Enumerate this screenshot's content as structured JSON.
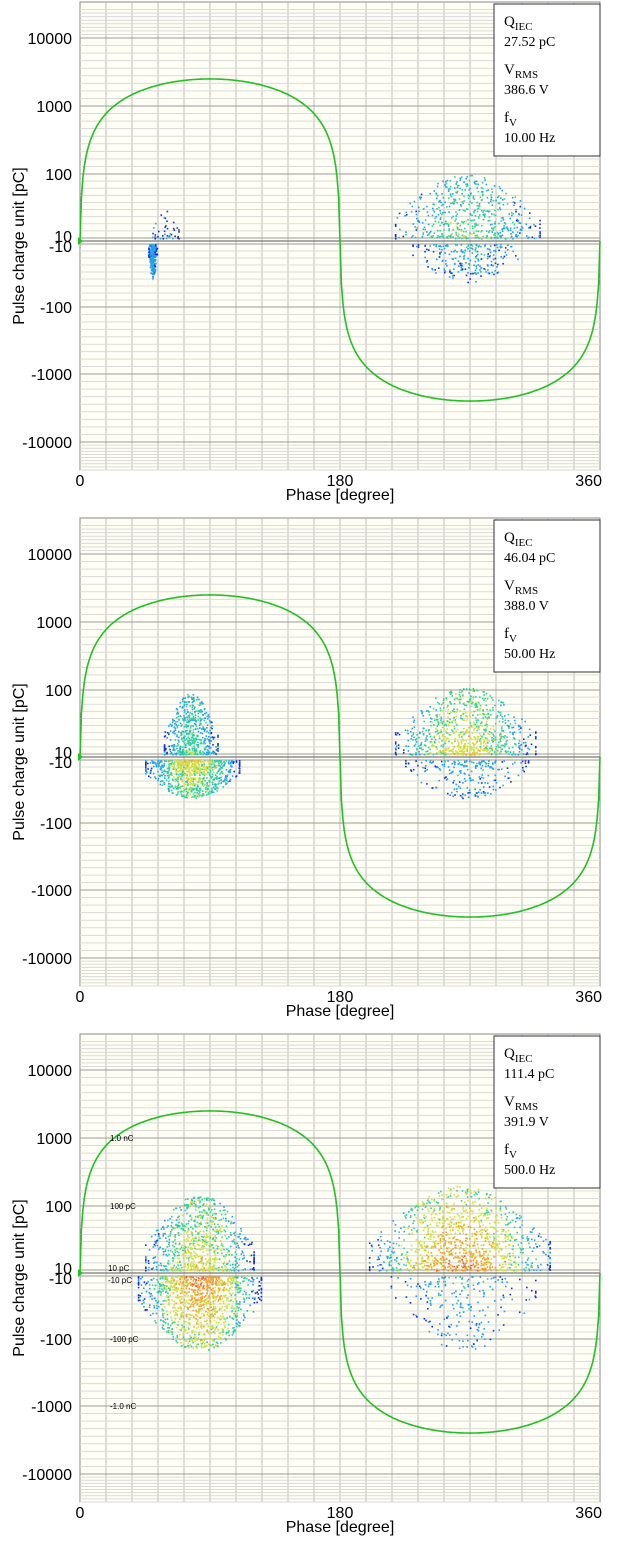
{
  "chart_data": [
    {
      "type": "scatter",
      "xlabel": "Phase [degree]",
      "ylabel": "Pulse charge unit [pC]",
      "xticks": [
        "0",
        "180",
        "360"
      ],
      "yticks": [
        "10000",
        "1000",
        "100",
        "10",
        "-10",
        "-100",
        "-1000",
        "-10000"
      ],
      "xlim": [
        0,
        360
      ],
      "yscale": "symmetric-log",
      "grid": true,
      "legend_position": "top-right",
      "legend": [
        {
          "key": "Q",
          "sub": "IEC",
          "value": "27.52 pC"
        },
        {
          "key": "V",
          "sub": "RMS",
          "value": "386.6 V"
        },
        {
          "key": "f",
          "sub": "V",
          "value": "10.00 Hz"
        }
      ],
      "voltage_reference": {
        "shape": "sine",
        "amplitude_pC": 2500,
        "period_deg": 360
      },
      "annotations": [],
      "clusters": [
        {
          "x": [
            47,
            53
          ],
          "y": [
            -35,
            -8
          ],
          "density": "low"
        },
        {
          "x": [
            50,
            68
          ],
          "y": [
            8,
            30
          ],
          "density": "very-low"
        },
        {
          "x": [
            218,
            318
          ],
          "y": [
            8,
            100
          ],
          "density": "medium"
        },
        {
          "x": [
            230,
            305
          ],
          "y": [
            -40,
            -8
          ],
          "density": "low"
        }
      ]
    },
    {
      "type": "scatter",
      "xlabel": "Phase [degree]",
      "ylabel": "Pulse charge unit [pC]",
      "xticks": [
        "0",
        "180",
        "360"
      ],
      "yticks": [
        "10000",
        "1000",
        "100",
        "10",
        "-10",
        "-100",
        "-1000",
        "-10000"
      ],
      "xlim": [
        0,
        360
      ],
      "yscale": "symmetric-log",
      "grid": true,
      "legend_position": "top-right",
      "legend": [
        {
          "key": "Q",
          "sub": "IEC",
          "value": "46.04 pC"
        },
        {
          "key": "V",
          "sub": "RMS",
          "value": "388.0 V"
        },
        {
          "key": "f",
          "sub": "V",
          "value": "50.00 Hz"
        }
      ],
      "voltage_reference": {
        "shape": "sine",
        "amplitude_pC": 2500,
        "period_deg": 360
      },
      "annotations": [],
      "clusters": [
        {
          "x": [
            58,
            95
          ],
          "y": [
            10,
            90
          ],
          "density": "medium"
        },
        {
          "x": [
            45,
            110
          ],
          "y": [
            -40,
            -8
          ],
          "density": "high"
        },
        {
          "x": [
            218,
            315
          ],
          "y": [
            8,
            110
          ],
          "density": "high"
        },
        {
          "x": [
            225,
            310
          ],
          "y": [
            -40,
            -8
          ],
          "density": "low"
        }
      ]
    },
    {
      "type": "scatter",
      "xlabel": "Phase [degree]",
      "ylabel": "Pulse charge unit [pC]",
      "xticks": [
        "0",
        "180",
        "360"
      ],
      "yticks": [
        "10000",
        "1000",
        "100",
        "10",
        "-10",
        "-100",
        "-1000",
        "-10000"
      ],
      "xlim": [
        0,
        360
      ],
      "yscale": "symmetric-log",
      "grid": true,
      "legend_position": "top-right",
      "legend": [
        {
          "key": "Q",
          "sub": "IEC",
          "value": "111.4 pC"
        },
        {
          "key": "V",
          "sub": "RMS",
          "value": "391.9 V"
        },
        {
          "key": "f",
          "sub": "V",
          "value": "500.0 Hz"
        }
      ],
      "voltage_reference": {
        "shape": "sine",
        "amplitude_pC": 2500,
        "period_deg": 360
      },
      "annotations": [
        {
          "text": "1.0 nC",
          "y": 1000
        },
        {
          "text": "100 pC",
          "y": 100
        },
        {
          "text": "10 pC",
          "y": 10
        },
        {
          "text": "-10 pC",
          "y": -10
        },
        {
          "text": "-100 pC",
          "y": -100
        },
        {
          "text": "-1.0 nC",
          "y": -1000
        }
      ],
      "clusters": [
        {
          "x": [
            45,
            120
          ],
          "y": [
            10,
            150
          ],
          "density": "high"
        },
        {
          "x": [
            40,
            125
          ],
          "y": [
            -150,
            -8
          ],
          "density": "very-high"
        },
        {
          "x": [
            200,
            325
          ],
          "y": [
            8,
            200
          ],
          "density": "very-high"
        },
        {
          "x": [
            215,
            315
          ],
          "y": [
            -150,
            -8
          ],
          "density": "low"
        }
      ]
    }
  ],
  "colors": {
    "plot_bg": "#fffff5",
    "grid": "#bcbcbc",
    "sine": "#22c022",
    "marker": "#22c022",
    "density_scale": [
      "#1030d0",
      "#20a0f0",
      "#30d0a0",
      "#d0e040",
      "#f0a030",
      "#e05050"
    ]
  }
}
